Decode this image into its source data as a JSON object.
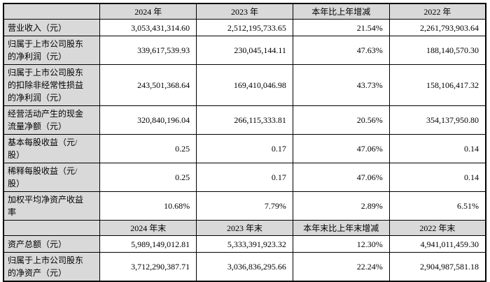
{
  "table": {
    "sections": [
      {
        "columns": [
          "2024 年",
          "2023 年",
          "本年比上年增减",
          "2022 年"
        ],
        "rows": [
          {
            "label": "营业收入（元）",
            "values": [
              "3,053,431,314.60",
              "2,512,195,733.65",
              "21.54%",
              "2,261,793,903.64"
            ]
          },
          {
            "label": "归属于上市公司股东的净利润（元）",
            "values": [
              "339,617,539.93",
              "230,045,144.11",
              "47.63%",
              "188,140,570.30"
            ]
          },
          {
            "label": "归属于上市公司股东的扣除非经常性损益的净利润（元）",
            "values": [
              "243,501,368.64",
              "169,410,046.98",
              "43.73%",
              "158,106,417.32"
            ]
          },
          {
            "label": "经营活动产生的现金流量净额（元）",
            "values": [
              "320,840,196.04",
              "266,115,333.81",
              "20.56%",
              "354,137,950.80"
            ]
          },
          {
            "label": "基本每股收益（元/股）",
            "values": [
              "0.25",
              "0.17",
              "47.06%",
              "0.14"
            ]
          },
          {
            "label": "稀释每股收益（元/股）",
            "values": [
              "0.25",
              "0.17",
              "47.06%",
              "0.14"
            ]
          },
          {
            "label": "加权平均净资产收益率",
            "values": [
              "10.68%",
              "7.79%",
              "2.89%",
              "6.51%"
            ]
          }
        ]
      },
      {
        "columns": [
          "2024 年末",
          "2023 年末",
          "本年末比上年末增减",
          "2022 年末"
        ],
        "rows": [
          {
            "label": "资产总额（元）",
            "values": [
              "5,989,149,012.81",
              "5,333,391,923.32",
              "12.30%",
              "4,941,011,459.30"
            ]
          },
          {
            "label": "归属于上市公司股东的净资产（元）",
            "values": [
              "3,712,290,387.71",
              "3,036,836,295.66",
              "22.24%",
              "2,904,987,581.18"
            ]
          }
        ]
      }
    ]
  },
  "colors": {
    "header_bg": "#d9d9d9",
    "label_bg": "#d9d9d9",
    "cell_bg": "#ffffff",
    "border": "#000000",
    "text": "#000000",
    "page_bg": "#ffffff"
  }
}
